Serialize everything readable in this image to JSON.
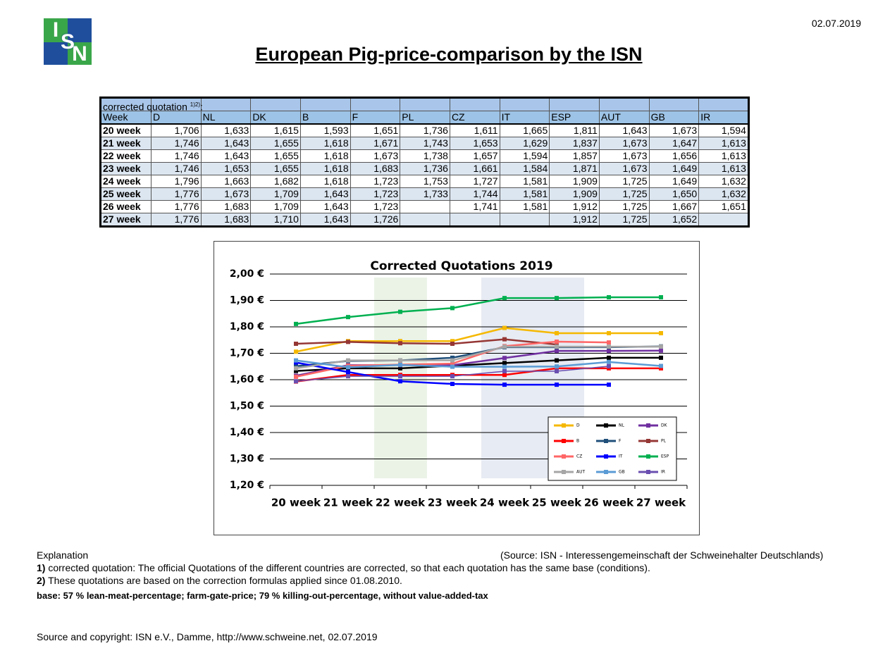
{
  "date": "02.07.2019",
  "logo": [
    "I",
    "S",
    "N"
  ],
  "title": "European Pig-price-comparison by the ISN",
  "table": {
    "caption": "corrected quotation",
    "caption_note": "1)2)",
    "caption_suffix": ":",
    "columns": [
      "Week",
      "D",
      "NL",
      "DK",
      "B",
      "F",
      "PL",
      "CZ",
      "IT",
      "ESP",
      "AUT",
      "GB",
      "IR"
    ],
    "rows": [
      [
        "20 week",
        "1,706",
        "1,633",
        "1,615",
        "1,593",
        "1,651",
        "1,736",
        "1,611",
        "1,665",
        "1,811",
        "1,643",
        "1,673",
        "1,594"
      ],
      [
        "21 week",
        "1,746",
        "1,643",
        "1,655",
        "1,618",
        "1,671",
        "1,743",
        "1,653",
        "1,629",
        "1,837",
        "1,673",
        "1,647",
        "1,613"
      ],
      [
        "22 week",
        "1,746",
        "1,643",
        "1,655",
        "1,618",
        "1,673",
        "1,738",
        "1,657",
        "1,594",
        "1,857",
        "1,673",
        "1,656",
        "1,613"
      ],
      [
        "23 week",
        "1,746",
        "1,653",
        "1,655",
        "1,618",
        "1,683",
        "1,736",
        "1,661",
        "1,584",
        "1,871",
        "1,673",
        "1,649",
        "1,613"
      ],
      [
        "24 week",
        "1,796",
        "1,663",
        "1,682",
        "1,618",
        "1,723",
        "1,753",
        "1,727",
        "1,581",
        "1,909",
        "1,725",
        "1,649",
        "1,632"
      ],
      [
        "25 week",
        "1,776",
        "1,673",
        "1,709",
        "1,643",
        "1,723",
        "1,733",
        "1,744",
        "1,581",
        "1,909",
        "1,725",
        "1,650",
        "1,632"
      ],
      [
        "26 week",
        "1,776",
        "1,683",
        "1,709",
        "1,643",
        "1,723",
        null,
        "1,741",
        "1,581",
        "1,912",
        "1,725",
        "1,667",
        "1,651"
      ],
      [
        "27 week",
        "1,776",
        "1,683",
        "1,710",
        "1,643",
        "1,726",
        null,
        null,
        null,
        "1,912",
        "1,725",
        "1,652",
        null
      ]
    ]
  },
  "chart_data": {
    "type": "line",
    "title": "Corrected Quotations 2019",
    "categories": [
      "20 week",
      "21 week",
      "22 week",
      "23 week",
      "24 week",
      "25 week",
      "26 week",
      "27 week"
    ],
    "ylim": [
      1.2,
      2.0
    ],
    "yticks": [
      {
        "value": 1.2,
        "label": "1,20 €"
      },
      {
        "value": 1.3,
        "label": "1,30 €"
      },
      {
        "value": 1.4,
        "label": "1,40 €"
      },
      {
        "value": 1.5,
        "label": "1,50 €"
      },
      {
        "value": 1.6,
        "label": "1,60 €"
      },
      {
        "value": 1.7,
        "label": "1,70 €"
      },
      {
        "value": 1.8,
        "label": "1,80 €"
      },
      {
        "value": 1.9,
        "label": "1,90 €"
      },
      {
        "value": 2.0,
        "label": "2,00 €"
      }
    ],
    "grid": true,
    "legend": "bottom-right",
    "series": [
      {
        "name": "D",
        "color": "#f5b800",
        "values": [
          1.706,
          1.746,
          1.746,
          1.746,
          1.796,
          1.776,
          1.776,
          1.776
        ]
      },
      {
        "name": "NL",
        "color": "#000000",
        "values": [
          1.633,
          1.643,
          1.643,
          1.653,
          1.663,
          1.673,
          1.683,
          1.683
        ]
      },
      {
        "name": "DK",
        "color": "#7030a0",
        "values": [
          1.615,
          1.655,
          1.655,
          1.655,
          1.682,
          1.709,
          1.709,
          1.71
        ]
      },
      {
        "name": "B",
        "color": "#ff0000",
        "values": [
          1.593,
          1.618,
          1.618,
          1.618,
          1.618,
          1.643,
          1.643,
          1.643
        ]
      },
      {
        "name": "F",
        "color": "#1f4e79",
        "values": [
          1.651,
          1.671,
          1.673,
          1.683,
          1.723,
          1.723,
          1.723,
          1.726
        ]
      },
      {
        "name": "PL",
        "color": "#953735",
        "values": [
          1.736,
          1.743,
          1.738,
          1.736,
          1.753,
          1.733,
          null,
          null
        ]
      },
      {
        "name": "CZ",
        "color": "#ff6666",
        "values": [
          1.611,
          1.653,
          1.657,
          1.661,
          1.727,
          1.744,
          1.741,
          null
        ]
      },
      {
        "name": "IT",
        "color": "#0000ff",
        "values": [
          1.665,
          1.629,
          1.594,
          1.584,
          1.581,
          1.581,
          1.581,
          null
        ]
      },
      {
        "name": "ESP",
        "color": "#00b050",
        "values": [
          1.811,
          1.837,
          1.857,
          1.871,
          1.909,
          1.909,
          1.912,
          1.912
        ]
      },
      {
        "name": "AUT",
        "color": "#a6a6a6",
        "values": [
          1.643,
          1.673,
          1.673,
          1.673,
          1.725,
          1.725,
          1.725,
          1.725
        ]
      },
      {
        "name": "GB",
        "color": "#5b9bd5",
        "values": [
          1.673,
          1.647,
          1.656,
          1.649,
          1.649,
          1.65,
          1.667,
          1.652
        ]
      },
      {
        "name": "IR",
        "color": "#6a4fb0",
        "values": [
          1.594,
          1.613,
          1.613,
          1.613,
          1.632,
          1.632,
          1.651,
          null
        ]
      }
    ]
  },
  "notes": {
    "heading": "Explanation",
    "source": "(Source: ISN - Interessengemeinschaft der Schweinehalter Deutschlands)",
    "items": [
      {
        "marker": "1)",
        "text": "corrected quotation: The official Quotations of the different countries are corrected, so that each quotation has the same base (conditions)."
      },
      {
        "marker": "2)",
        "text": "These quotations are based on the correction formulas applied since 01.08.2010."
      }
    ],
    "base": "base: 57 % lean-meat-percentage; farm-gate-price; 79 % killing-out-percentage, without value-added-tax"
  },
  "footer": "Source and copyright: ISN e.V., Damme, http://www.schweine.net, 02.07.2019"
}
